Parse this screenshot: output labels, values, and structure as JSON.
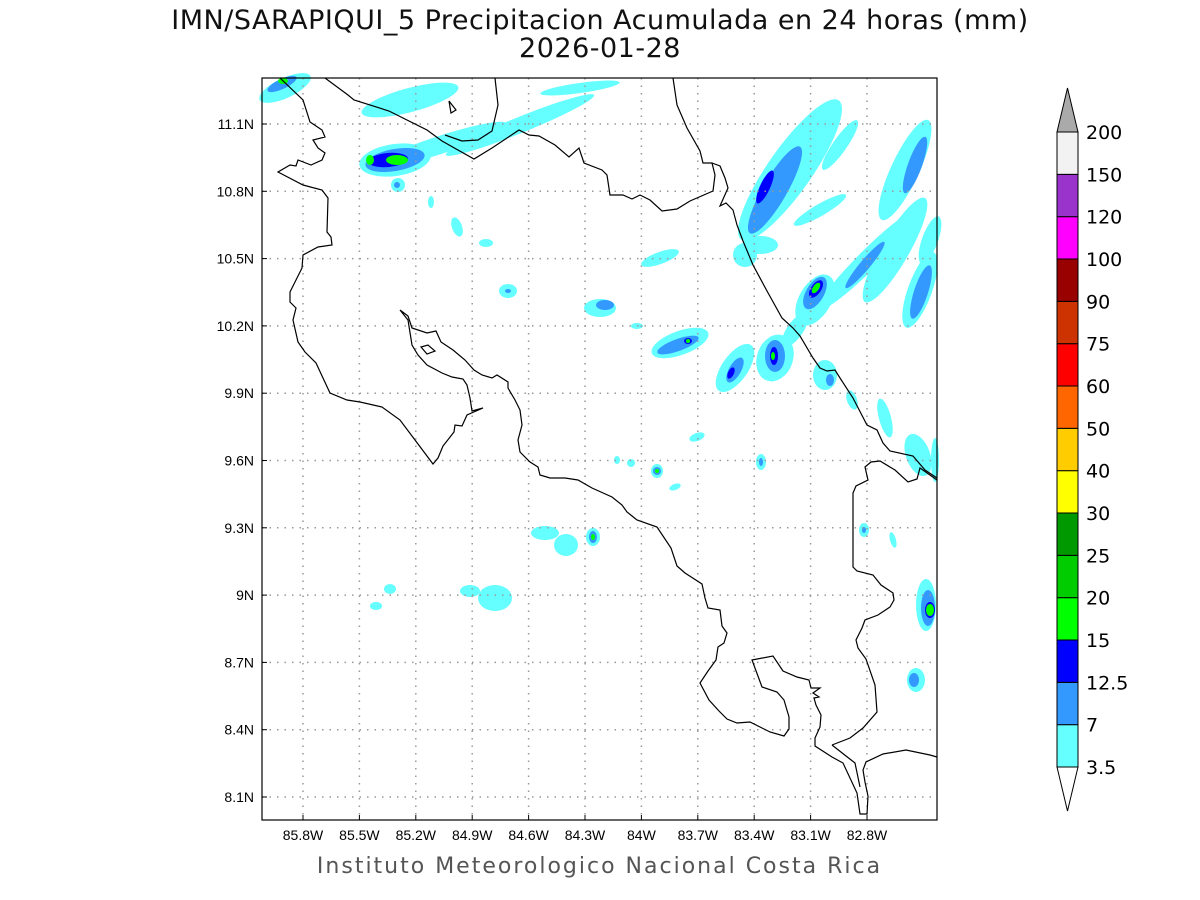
{
  "title": {
    "line1": "IMN/SARAPIQUI_5 Precipitacion Acumulada en 24 horas (mm)",
    "line2": "2026-01-28"
  },
  "footer": "Instituto Meteorologico Nacional Costa Rica",
  "chart_data": {
    "type": "heatmap",
    "title": "IMN/SARAPIQUI_5 Precipitacion Acumulada en 24 horas (mm)",
    "subtitle": "2026-01-28",
    "units": "mm",
    "lon_range": [
      -86.02,
      -82.43
    ],
    "lat_range": [
      8.0,
      11.3
    ],
    "grid": true,
    "x_ticks": [
      {
        "value": -85.8,
        "label": "85.8W"
      },
      {
        "value": -85.5,
        "label": "85.5W"
      },
      {
        "value": -85.2,
        "label": "85.2W"
      },
      {
        "value": -84.9,
        "label": "84.9W"
      },
      {
        "value": -84.6,
        "label": "84.6W"
      },
      {
        "value": -84.3,
        "label": "84.3W"
      },
      {
        "value": -84.0,
        "label": "84W"
      },
      {
        "value": -83.7,
        "label": "83.7W"
      },
      {
        "value": -83.4,
        "label": "83.4W"
      },
      {
        "value": -83.1,
        "label": "83.1W"
      },
      {
        "value": -82.8,
        "label": "82.8W"
      }
    ],
    "y_ticks": [
      {
        "value": 11.1,
        "label": "11.1N"
      },
      {
        "value": 10.8,
        "label": "10.8N"
      },
      {
        "value": 10.5,
        "label": "10.5N"
      },
      {
        "value": 10.2,
        "label": "10.2N"
      },
      {
        "value": 9.9,
        "label": "9.9N"
      },
      {
        "value": 9.6,
        "label": "9.6N"
      },
      {
        "value": 9.3,
        "label": "9.3N"
      },
      {
        "value": 9.0,
        "label": "9N"
      },
      {
        "value": 8.7,
        "label": "8.7N"
      },
      {
        "value": 8.4,
        "label": "8.4N"
      },
      {
        "value": 8.1,
        "label": "8.1N"
      }
    ],
    "colorbar": {
      "levels": [
        "3.5",
        "7",
        "12.5",
        "15",
        "20",
        "25",
        "30",
        "40",
        "50",
        "60",
        "75",
        "90",
        "100",
        "120",
        "150",
        "200"
      ],
      "colors": [
        "#66ffff",
        "#3399ff",
        "#0000ff",
        "#00ff00",
        "#00cc00",
        "#009900",
        "#ffff00",
        "#ffcc00",
        "#ff6600",
        "#ff0000",
        "#cc3300",
        "#990000",
        "#ff00ff",
        "#9933cc",
        "#f2f2f2"
      ],
      "under_color": "#ffffff",
      "over_color": "#aaaaaa"
    }
  }
}
